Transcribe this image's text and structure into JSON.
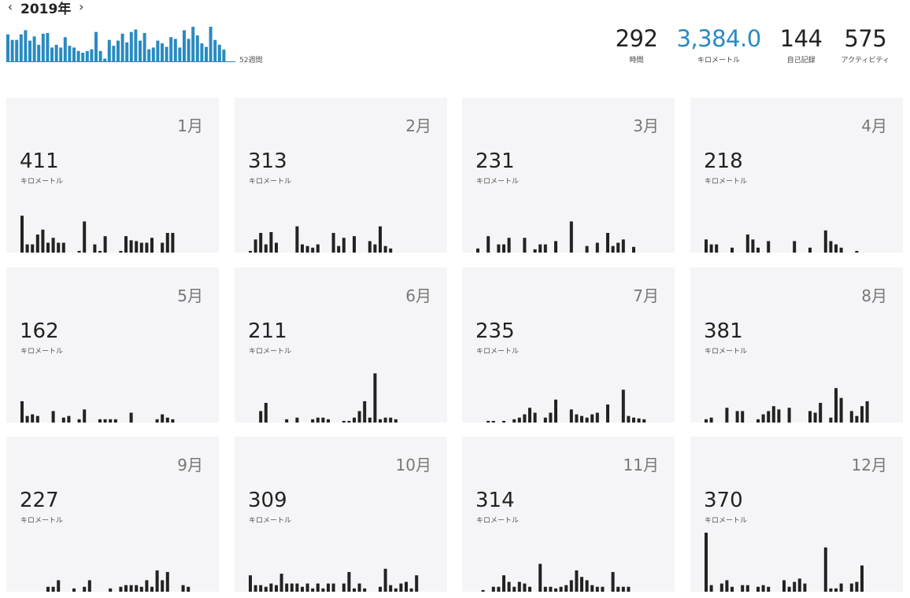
{
  "header": {
    "year_label": "2019年",
    "prev_icon": "chevron-left-icon",
    "next_icon": "chevron-right-icon"
  },
  "weekly_chart": {
    "weeks_label": "52週間",
    "color": "#2a8ac0",
    "values": [
      78,
      62,
      62,
      78,
      90,
      60,
      72,
      48,
      80,
      82,
      40,
      48,
      40,
      70,
      45,
      40,
      30,
      25,
      30,
      35,
      85,
      30,
      8,
      62,
      45,
      60,
      80,
      55,
      85,
      92,
      60,
      82,
      35,
      40,
      60,
      52,
      42,
      70,
      65,
      40,
      90,
      65,
      100,
      75,
      52,
      42,
      100,
      62,
      48,
      34,
      0,
      0
    ]
  },
  "totals": [
    {
      "value": "292",
      "label": "時間",
      "accent": false
    },
    {
      "value": "3,384.0",
      "label": "キロメートル",
      "accent": true
    },
    {
      "value": "144",
      "label": "自己記録",
      "accent": false
    },
    {
      "value": "575",
      "label": "アクティビティ",
      "accent": false
    }
  ],
  "bar_color": "#222222",
  "months": [
    {
      "month": "1月",
      "distance": "411",
      "unit": "キロメートル",
      "days": [
        45,
        10,
        10,
        22,
        28,
        12,
        18,
        12,
        12,
        0,
        0,
        2,
        38,
        0,
        10,
        2,
        20,
        0,
        0,
        2,
        20,
        15,
        14,
        12,
        12,
        18,
        0,
        12,
        24,
        24,
        0
      ]
    },
    {
      "month": "2月",
      "distance": "313",
      "unit": "キロメートル",
      "days": [
        2,
        16,
        24,
        10,
        25,
        12,
        0,
        0,
        0,
        32,
        10,
        8,
        6,
        10,
        0,
        0,
        24,
        8,
        18,
        0,
        20,
        0,
        0,
        14,
        10,
        32,
        8,
        5
      ]
    },
    {
      "month": "3月",
      "distance": "231",
      "unit": "キロメートル",
      "days": [
        5,
        0,
        20,
        0,
        10,
        10,
        18,
        0,
        0,
        18,
        0,
        4,
        10,
        10,
        0,
        14,
        0,
        0,
        38,
        0,
        0,
        8,
        0,
        12,
        0,
        24,
        8,
        12,
        16,
        0,
        7
      ]
    },
    {
      "month": "4月",
      "distance": "218",
      "unit": "キロメートル",
      "days": [
        16,
        10,
        10,
        0,
        0,
        6,
        0,
        0,
        22,
        16,
        6,
        0,
        14,
        0,
        0,
        0,
        0,
        14,
        0,
        0,
        6,
        0,
        0,
        27,
        14,
        10,
        6,
        0,
        0,
        2
      ]
    },
    {
      "month": "5月",
      "distance": "162",
      "unit": "キロメートル",
      "days": [
        26,
        8,
        10,
        8,
        0,
        0,
        14,
        0,
        6,
        8,
        0,
        4,
        16,
        0,
        0,
        4,
        4,
        4,
        4,
        0,
        0,
        12,
        0,
        0,
        0,
        0,
        4,
        10,
        6,
        4,
        0
      ]
    },
    {
      "month": "6月",
      "distance": "211",
      "unit": "キロメートル",
      "days": [
        0,
        0,
        14,
        24,
        0,
        0,
        0,
        4,
        0,
        6,
        0,
        0,
        4,
        6,
        6,
        4,
        0,
        0,
        2,
        2,
        6,
        14,
        26,
        6,
        60,
        4,
        6,
        6,
        4,
        0
      ]
    },
    {
      "month": "7月",
      "distance": "235",
      "unit": "キロメートル",
      "days": [
        0,
        0,
        2,
        2,
        0,
        2,
        0,
        4,
        6,
        10,
        18,
        12,
        0,
        6,
        12,
        28,
        0,
        0,
        16,
        10,
        8,
        6,
        10,
        12,
        0,
        22,
        0,
        0,
        40,
        8,
        6,
        5,
        4
      ]
    },
    {
      "month": "8月",
      "distance": "381",
      "unit": "キロメートル",
      "days": [
        4,
        6,
        0,
        0,
        18,
        0,
        14,
        14,
        0,
        0,
        4,
        10,
        14,
        20,
        16,
        0,
        18,
        0,
        0,
        0,
        14,
        12,
        24,
        0,
        6,
        42,
        30,
        0,
        14,
        8,
        20,
        26,
        0,
        0
      ]
    },
    {
      "month": "9月",
      "distance": "227",
      "unit": "キロメートル",
      "days": [
        0,
        0,
        0,
        0,
        0,
        6,
        6,
        14,
        0,
        0,
        4,
        0,
        6,
        14,
        0,
        0,
        0,
        4,
        0,
        6,
        8,
        8,
        8,
        6,
        14,
        6,
        26,
        14,
        24,
        0,
        0,
        8,
        6
      ]
    },
    {
      "month": "10月",
      "distance": "309",
      "unit": "キロメートル",
      "days": [
        20,
        8,
        8,
        6,
        10,
        8,
        22,
        10,
        10,
        10,
        6,
        10,
        4,
        10,
        4,
        10,
        10,
        0,
        10,
        24,
        4,
        10,
        4,
        0,
        0,
        6,
        28,
        8,
        4,
        10,
        12,
        4,
        20
      ]
    },
    {
      "month": "11月",
      "distance": "314",
      "unit": "キロメートル",
      "days": [
        0,
        2,
        0,
        6,
        6,
        20,
        12,
        6,
        12,
        10,
        6,
        0,
        34,
        6,
        6,
        4,
        6,
        8,
        14,
        26,
        18,
        14,
        8,
        6,
        6,
        0,
        24,
        6,
        6,
        6,
        0
      ]
    },
    {
      "month": "12月",
      "distance": "370",
      "unit": "キロメートル",
      "days": [
        72,
        8,
        0,
        10,
        14,
        6,
        0,
        8,
        8,
        0,
        6,
        8,
        6,
        0,
        0,
        14,
        6,
        12,
        16,
        10,
        0,
        0,
        0,
        54,
        4,
        4,
        10,
        0,
        10,
        12,
        32
      ]
    }
  ]
}
